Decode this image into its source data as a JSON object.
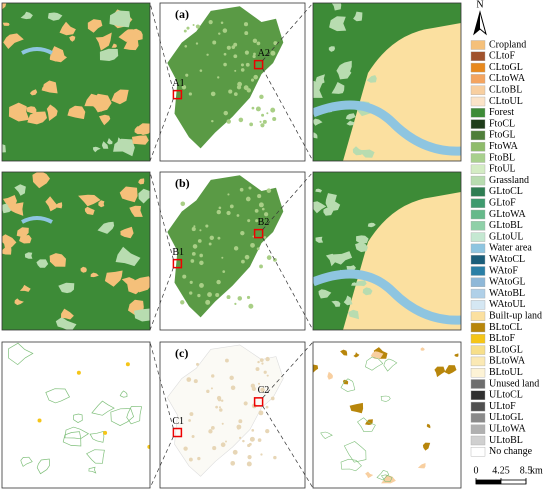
{
  "panels": [
    {
      "label": "(a)",
      "markers": [
        "A1",
        "A2"
      ]
    },
    {
      "label": "(b)",
      "markers": [
        "B1",
        "B2"
      ]
    },
    {
      "label": "(c)",
      "markers": [
        "C1",
        "C2"
      ]
    }
  ],
  "north": "N",
  "legend": [
    {
      "name": "Cropland",
      "color": "#f5c07a"
    },
    {
      "name": "CLtoF",
      "color": "#a0522d"
    },
    {
      "name": "CLtoGL",
      "color": "#e8891e"
    },
    {
      "name": "CLtoWA",
      "color": "#f4a460"
    },
    {
      "name": "CLtoBL",
      "color": "#f8cfa0"
    },
    {
      "name": "CLtoUL",
      "color": "#fbe3c8"
    },
    {
      "name": "Forest",
      "color": "#3d8b37"
    },
    {
      "name": "FtoCL",
      "color": "#1f3d1a"
    },
    {
      "name": "FtoGL",
      "color": "#4f7f3a"
    },
    {
      "name": "FtoWA",
      "color": "#8fbc6b"
    },
    {
      "name": "FtoBL",
      "color": "#a8d08d"
    },
    {
      "name": "FtoUL",
      "color": "#d4ecc4"
    },
    {
      "name": "Grassland",
      "color": "#b8dcb0"
    },
    {
      "name": "GLtoCL",
      "color": "#2e7d52"
    },
    {
      "name": "GLtoF",
      "color": "#3e9a6e"
    },
    {
      "name": "GLtoWA",
      "color": "#66b98a"
    },
    {
      "name": "GLtoBL",
      "color": "#8fd0a8"
    },
    {
      "name": "GLtoUL",
      "color": "#c5e8d2"
    },
    {
      "name": "Water area",
      "color": "#8ec5e0"
    },
    {
      "name": "WAtoCL",
      "color": "#1b5e7a"
    },
    {
      "name": "WAtoF",
      "color": "#2a7fa6"
    },
    {
      "name": "WAtoGL",
      "color": "#8fb8d8"
    },
    {
      "name": "WAtoBL",
      "color": "#b0d0e8"
    },
    {
      "name": "WAtoUL",
      "color": "#d5e7f3"
    },
    {
      "name": "Built-up land",
      "color": "#fbe0a0"
    },
    {
      "name": "BLtoCL",
      "color": "#b8860b"
    },
    {
      "name": "BLtoF",
      "color": "#f5c518"
    },
    {
      "name": "BLtoGL",
      "color": "#f7df8a"
    },
    {
      "name": "BLtoWA",
      "color": "#fbe9b4"
    },
    {
      "name": "BLtoUL",
      "color": "#fdf3d6"
    },
    {
      "name": "Unused land",
      "color": "#6e6e6e"
    },
    {
      "name": "ULtoCL",
      "color": "#303030"
    },
    {
      "name": "ULtoF",
      "color": "#505050"
    },
    {
      "name": "ULtoGL",
      "color": "#8a8a8a"
    },
    {
      "name": "ULtoWA",
      "color": "#b0b0b0"
    },
    {
      "name": "ULtoBL",
      "color": "#d0d0d0"
    },
    {
      "name": "No change",
      "color": "#ffffff"
    }
  ],
  "scale": {
    "ticks": [
      0,
      4.25,
      8.5
    ],
    "unit": "km"
  }
}
